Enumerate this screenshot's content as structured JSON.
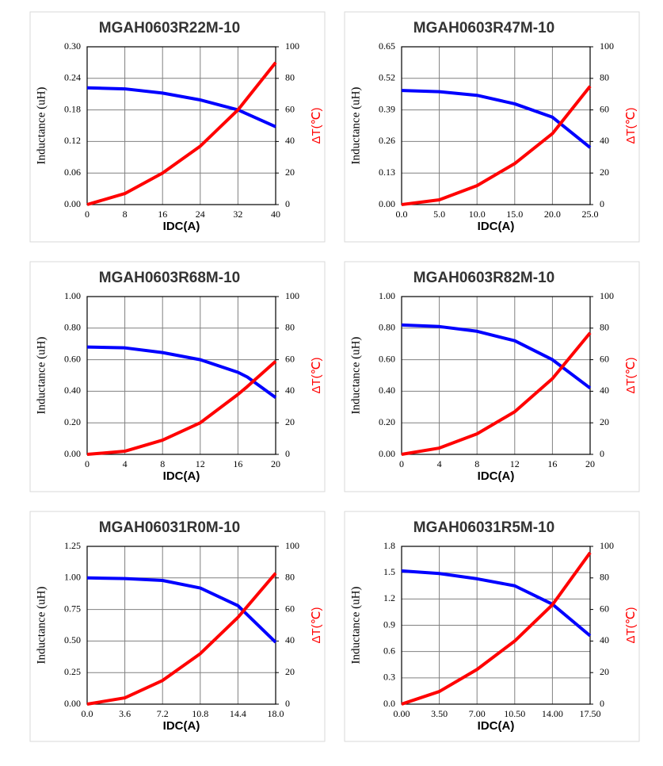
{
  "chart_data": [
    {
      "type": "line",
      "title": "MGAH0603R22M-10",
      "xlabel": "IDC(A)",
      "ylabel": "Inductance (uH)",
      "y2label": "ΔT(℃)",
      "x": [
        0,
        8,
        16,
        24,
        32,
        40
      ],
      "xlim": [
        0,
        40
      ],
      "xticks": [
        0,
        8,
        16,
        24,
        32,
        40
      ],
      "ylim": [
        0,
        0.3
      ],
      "yticks": [
        {
          "value": 0,
          "label": "0.00"
        },
        0.06,
        0.12,
        0.18,
        0.24,
        {
          "value": 0.3,
          "label": "0.30"
        }
      ],
      "y2lim": [
        0,
        100
      ],
      "y2ticks": [
        0,
        20,
        40,
        60,
        80,
        100
      ],
      "grid": true,
      "series": [
        {
          "color": "#0000ff",
          "values": [
            0.222,
            0.22,
            0.212,
            0.199,
            0.18,
            0.148
          ]
        },
        {
          "color": "#ff0000",
          "axis": "y2",
          "values": [
            0,
            7,
            20,
            37,
            60,
            90
          ]
        }
      ]
    },
    {
      "type": "line",
      "title": "MGAH0603R47M-10",
      "xlabel": "IDC(A)",
      "ylabel": "Inductance (uH)",
      "y2label": "ΔT(℃)",
      "x": [
        0,
        5,
        10,
        15,
        20,
        25
      ],
      "xlim": [
        0,
        25
      ],
      "xticks": [
        {
          "value": 0,
          "label": "0.0"
        },
        {
          "value": 5,
          "label": "5.0"
        },
        {
          "value": 10,
          "label": "10.0"
        },
        {
          "value": 15,
          "label": "15.0"
        },
        {
          "value": 20,
          "label": "20.0"
        },
        {
          "value": 25,
          "label": "25.0"
        }
      ],
      "ylim": [
        0,
        0.65
      ],
      "yticks": [
        {
          "value": 0,
          "label": "0.00"
        },
        0.13,
        0.26,
        0.39,
        0.52,
        0.65
      ],
      "y2lim": [
        0,
        100
      ],
      "y2ticks": [
        0,
        20,
        40,
        60,
        80,
        100
      ],
      "grid": true,
      "series": [
        {
          "color": "#0000ff",
          "values": [
            0.47,
            0.465,
            0.45,
            0.415,
            0.36,
            0.235
          ]
        },
        {
          "color": "#ff0000",
          "axis": "y2",
          "values": [
            0,
            3,
            12,
            26,
            45,
            75
          ]
        }
      ]
    },
    {
      "type": "line",
      "title": "MGAH0603R68M-10",
      "xlabel": "IDC(A)",
      "ylabel": "Inductance (uH)",
      "y2label": "ΔT(℃)",
      "x": [
        0,
        4,
        8,
        12,
        16,
        17,
        20
      ],
      "xlim": [
        0,
        20
      ],
      "xticks": [
        0,
        4,
        8,
        12,
        16,
        20
      ],
      "ylim": [
        0,
        1
      ],
      "yticks": [
        {
          "value": 0,
          "label": "0.00"
        },
        {
          "value": 0.2,
          "label": "0.20"
        },
        {
          "value": 0.4,
          "label": "0.40"
        },
        {
          "value": 0.6,
          "label": "0.60"
        },
        {
          "value": 0.8,
          "label": "0.80"
        },
        {
          "value": 1,
          "label": "1.00"
        }
      ],
      "y2lim": [
        0,
        100
      ],
      "y2ticks": [
        0,
        20,
        40,
        60,
        80,
        100
      ],
      "grid": true,
      "series": [
        {
          "color": "#0000ff",
          "values": [
            0.68,
            0.675,
            0.645,
            0.6,
            0.52,
            0.49,
            0.36
          ]
        },
        {
          "color": "#ff0000",
          "axis": "y2",
          "values": [
            0,
            2,
            9,
            20,
            38,
            43,
            59
          ]
        }
      ]
    },
    {
      "type": "line",
      "title": "MGAH0603R82M-10",
      "xlabel": "IDC(A)",
      "ylabel": "Inductance (uH)",
      "y2label": "ΔT(℃)",
      "x": [
        0,
        4,
        8,
        12,
        16,
        20
      ],
      "xlim": [
        0,
        20
      ],
      "xticks": [
        0,
        4,
        8,
        12,
        16,
        20
      ],
      "ylim": [
        0,
        1
      ],
      "yticks": [
        {
          "value": 0,
          "label": "0.00"
        },
        {
          "value": 0.2,
          "label": "0.20"
        },
        {
          "value": 0.4,
          "label": "0.40"
        },
        {
          "value": 0.6,
          "label": "0.60"
        },
        {
          "value": 0.8,
          "label": "0.80"
        },
        {
          "value": 1,
          "label": "1.00"
        }
      ],
      "y2lim": [
        0,
        100
      ],
      "y2ticks": [
        0,
        20,
        40,
        60,
        80,
        100
      ],
      "grid": true,
      "series": [
        {
          "color": "#0000ff",
          "values": [
            0.82,
            0.81,
            0.78,
            0.72,
            0.6,
            0.42
          ]
        },
        {
          "color": "#ff0000",
          "axis": "y2",
          "values": [
            0,
            4,
            13,
            27,
            48,
            77
          ]
        }
      ]
    },
    {
      "type": "line",
      "title": "MGAH06031R0M-10",
      "xlabel": "IDC(A)",
      "ylabel": "Inductance (uH)",
      "y2label": "ΔT(℃)",
      "x": [
        0,
        3.6,
        7.2,
        10.8,
        14.4,
        18
      ],
      "xlim": [
        0,
        18
      ],
      "xticks": [
        {
          "value": 0,
          "label": "0.0"
        },
        3.6,
        7.2,
        10.8,
        14.4,
        {
          "value": 18,
          "label": "18.0"
        }
      ],
      "ylim": [
        0,
        1.25
      ],
      "yticks": [
        {
          "value": 0,
          "label": "0.00"
        },
        0.25,
        {
          "value": 0.5,
          "label": "0.50"
        },
        0.75,
        {
          "value": 1,
          "label": "1.00"
        },
        1.25
      ],
      "y2lim": [
        0,
        100
      ],
      "y2ticks": [
        0,
        20,
        40,
        60,
        80,
        100
      ],
      "grid": true,
      "series": [
        {
          "color": "#0000ff",
          "values": [
            1.0,
            0.995,
            0.98,
            0.92,
            0.78,
            0.49
          ]
        },
        {
          "color": "#ff0000",
          "axis": "y2",
          "values": [
            0,
            4,
            15,
            32,
            55,
            83
          ]
        }
      ]
    },
    {
      "type": "line",
      "title": "MGAH06031R5M-10",
      "xlabel": "IDC(A)",
      "ylabel": "Inductance (uH)",
      "y2label": "ΔT(℃)",
      "x": [
        0,
        3.5,
        7,
        10.5,
        14,
        17.5
      ],
      "xlim": [
        0,
        17.5
      ],
      "xticks": [
        {
          "value": 0,
          "label": "0.00"
        },
        {
          "value": 3.5,
          "label": "3.50"
        },
        {
          "value": 7,
          "label": "7.00"
        },
        {
          "value": 10.5,
          "label": "10.50"
        },
        {
          "value": 14,
          "label": "14.00"
        },
        {
          "value": 17.5,
          "label": "17.50"
        }
      ],
      "ylim": [
        0,
        1.8
      ],
      "yticks": [
        {
          "value": 0,
          "label": "0.0"
        },
        0.3,
        0.6,
        0.9,
        1.2,
        1.5,
        1.8
      ],
      "y2lim": [
        0,
        100
      ],
      "y2ticks": [
        0,
        20,
        40,
        60,
        80,
        100
      ],
      "grid": true,
      "series": [
        {
          "color": "#0000ff",
          "values": [
            1.52,
            1.49,
            1.43,
            1.35,
            1.14,
            0.78
          ]
        },
        {
          "color": "#ff0000",
          "axis": "y2",
          "values": [
            0,
            8,
            22,
            40,
            63,
            96
          ]
        }
      ]
    }
  ]
}
